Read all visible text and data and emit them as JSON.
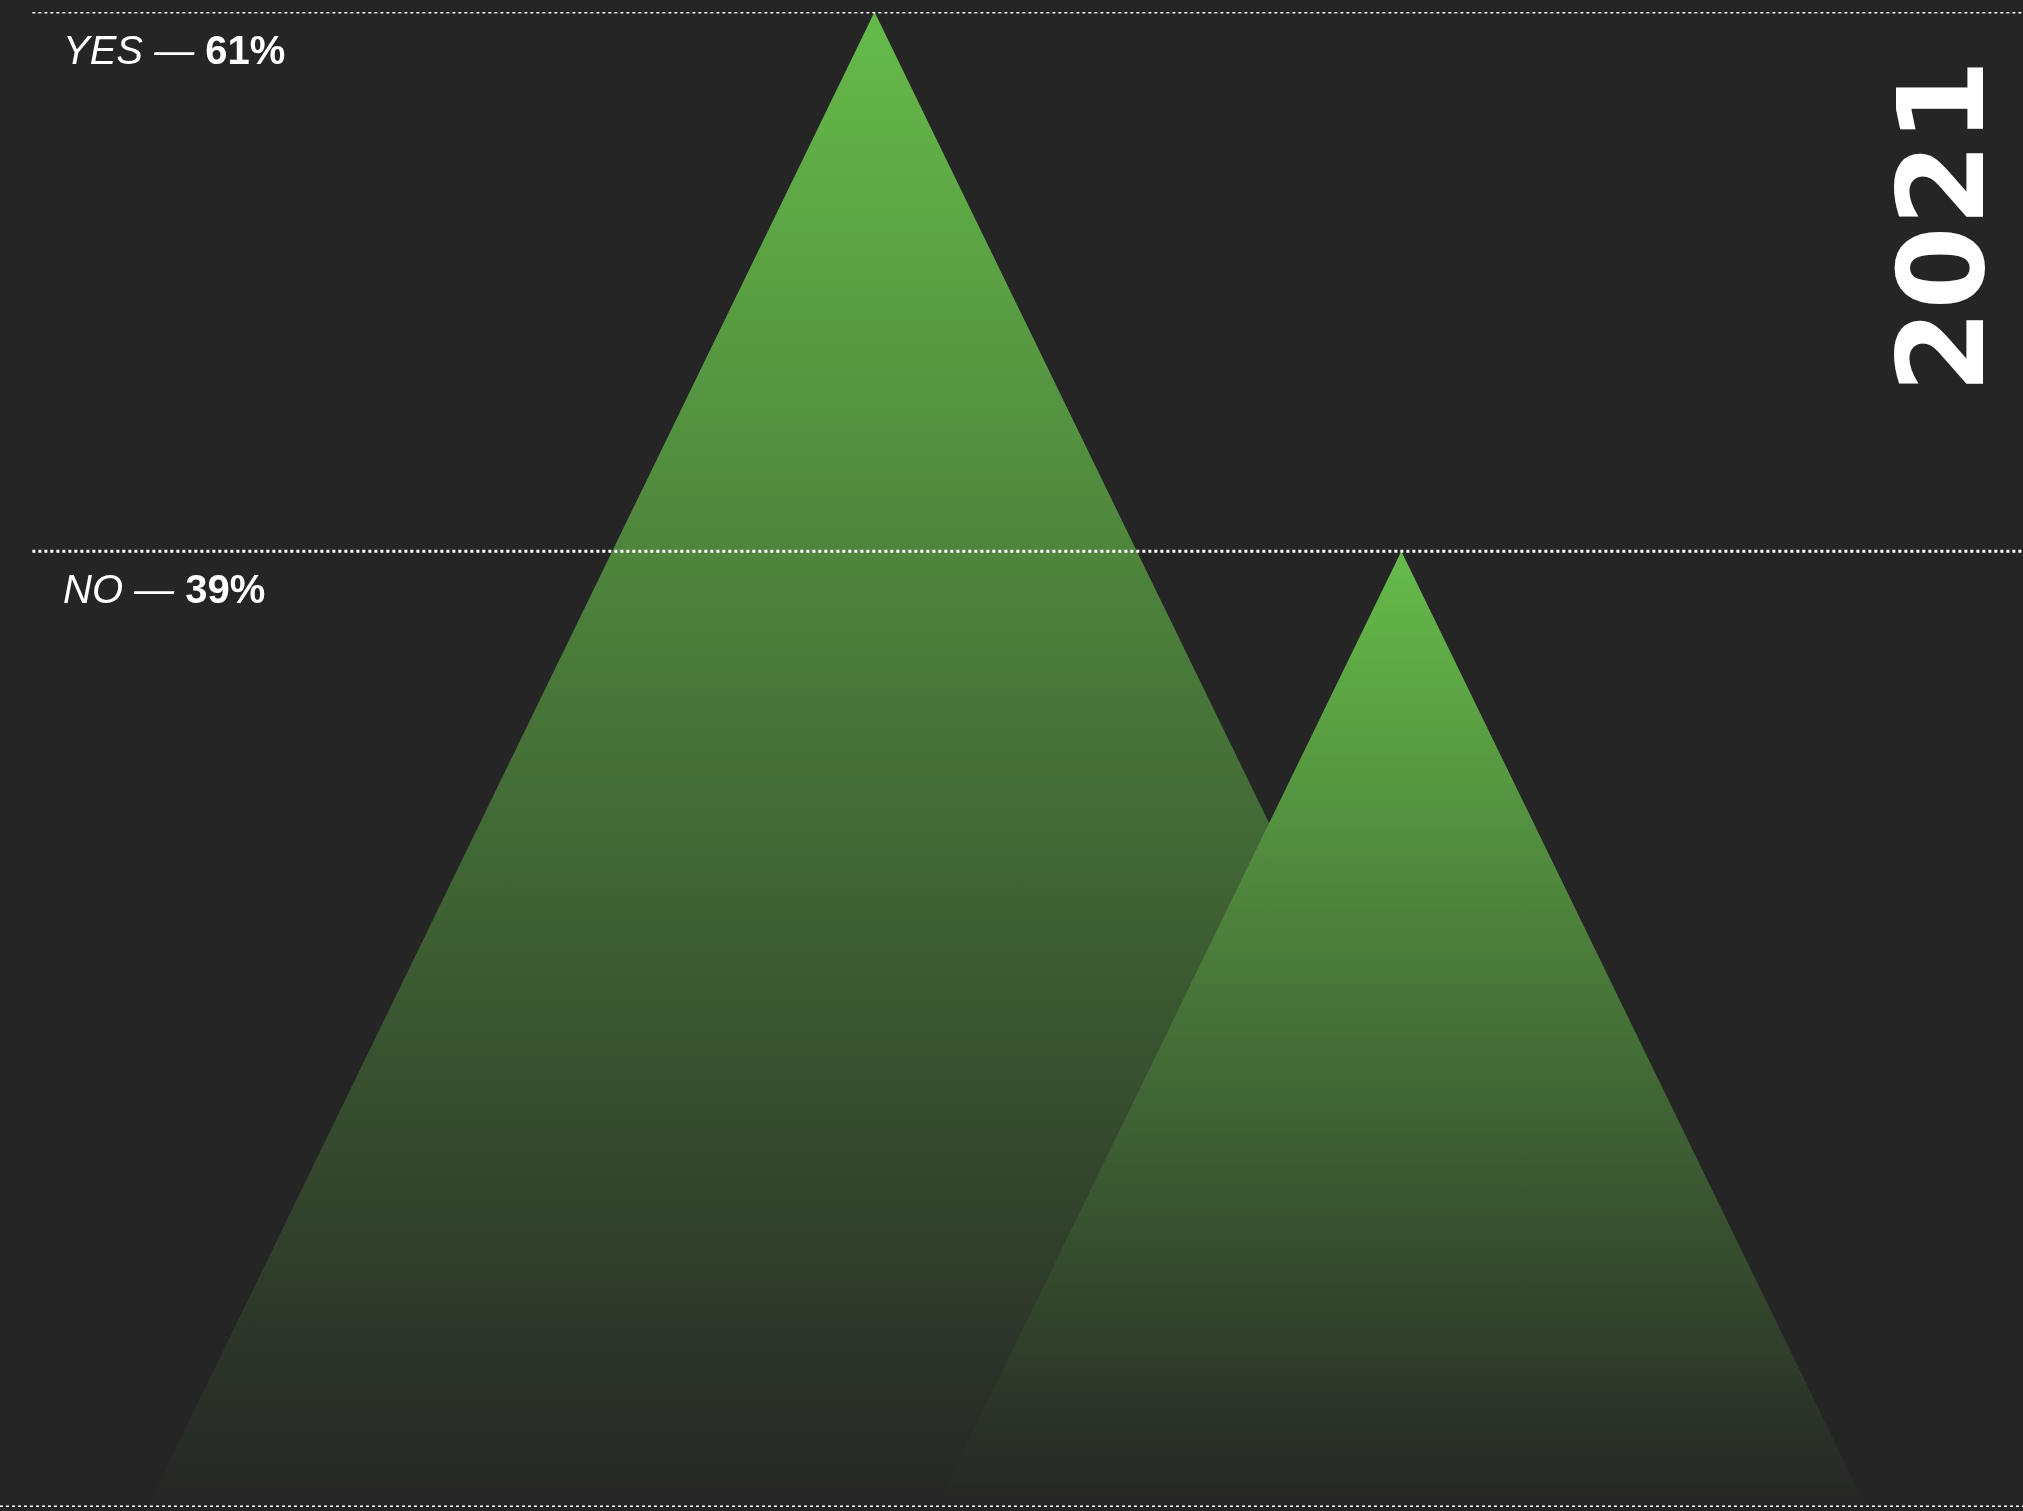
{
  "chart_data": {
    "type": "other",
    "title": "2021",
    "categories": [
      null,
      null
    ],
    "values": [
      61,
      39
    ],
    "color": "#66bb4a",
    "value_labels": [
      "YES — 61%",
      "NO — 39%"
    ]
  }
}
